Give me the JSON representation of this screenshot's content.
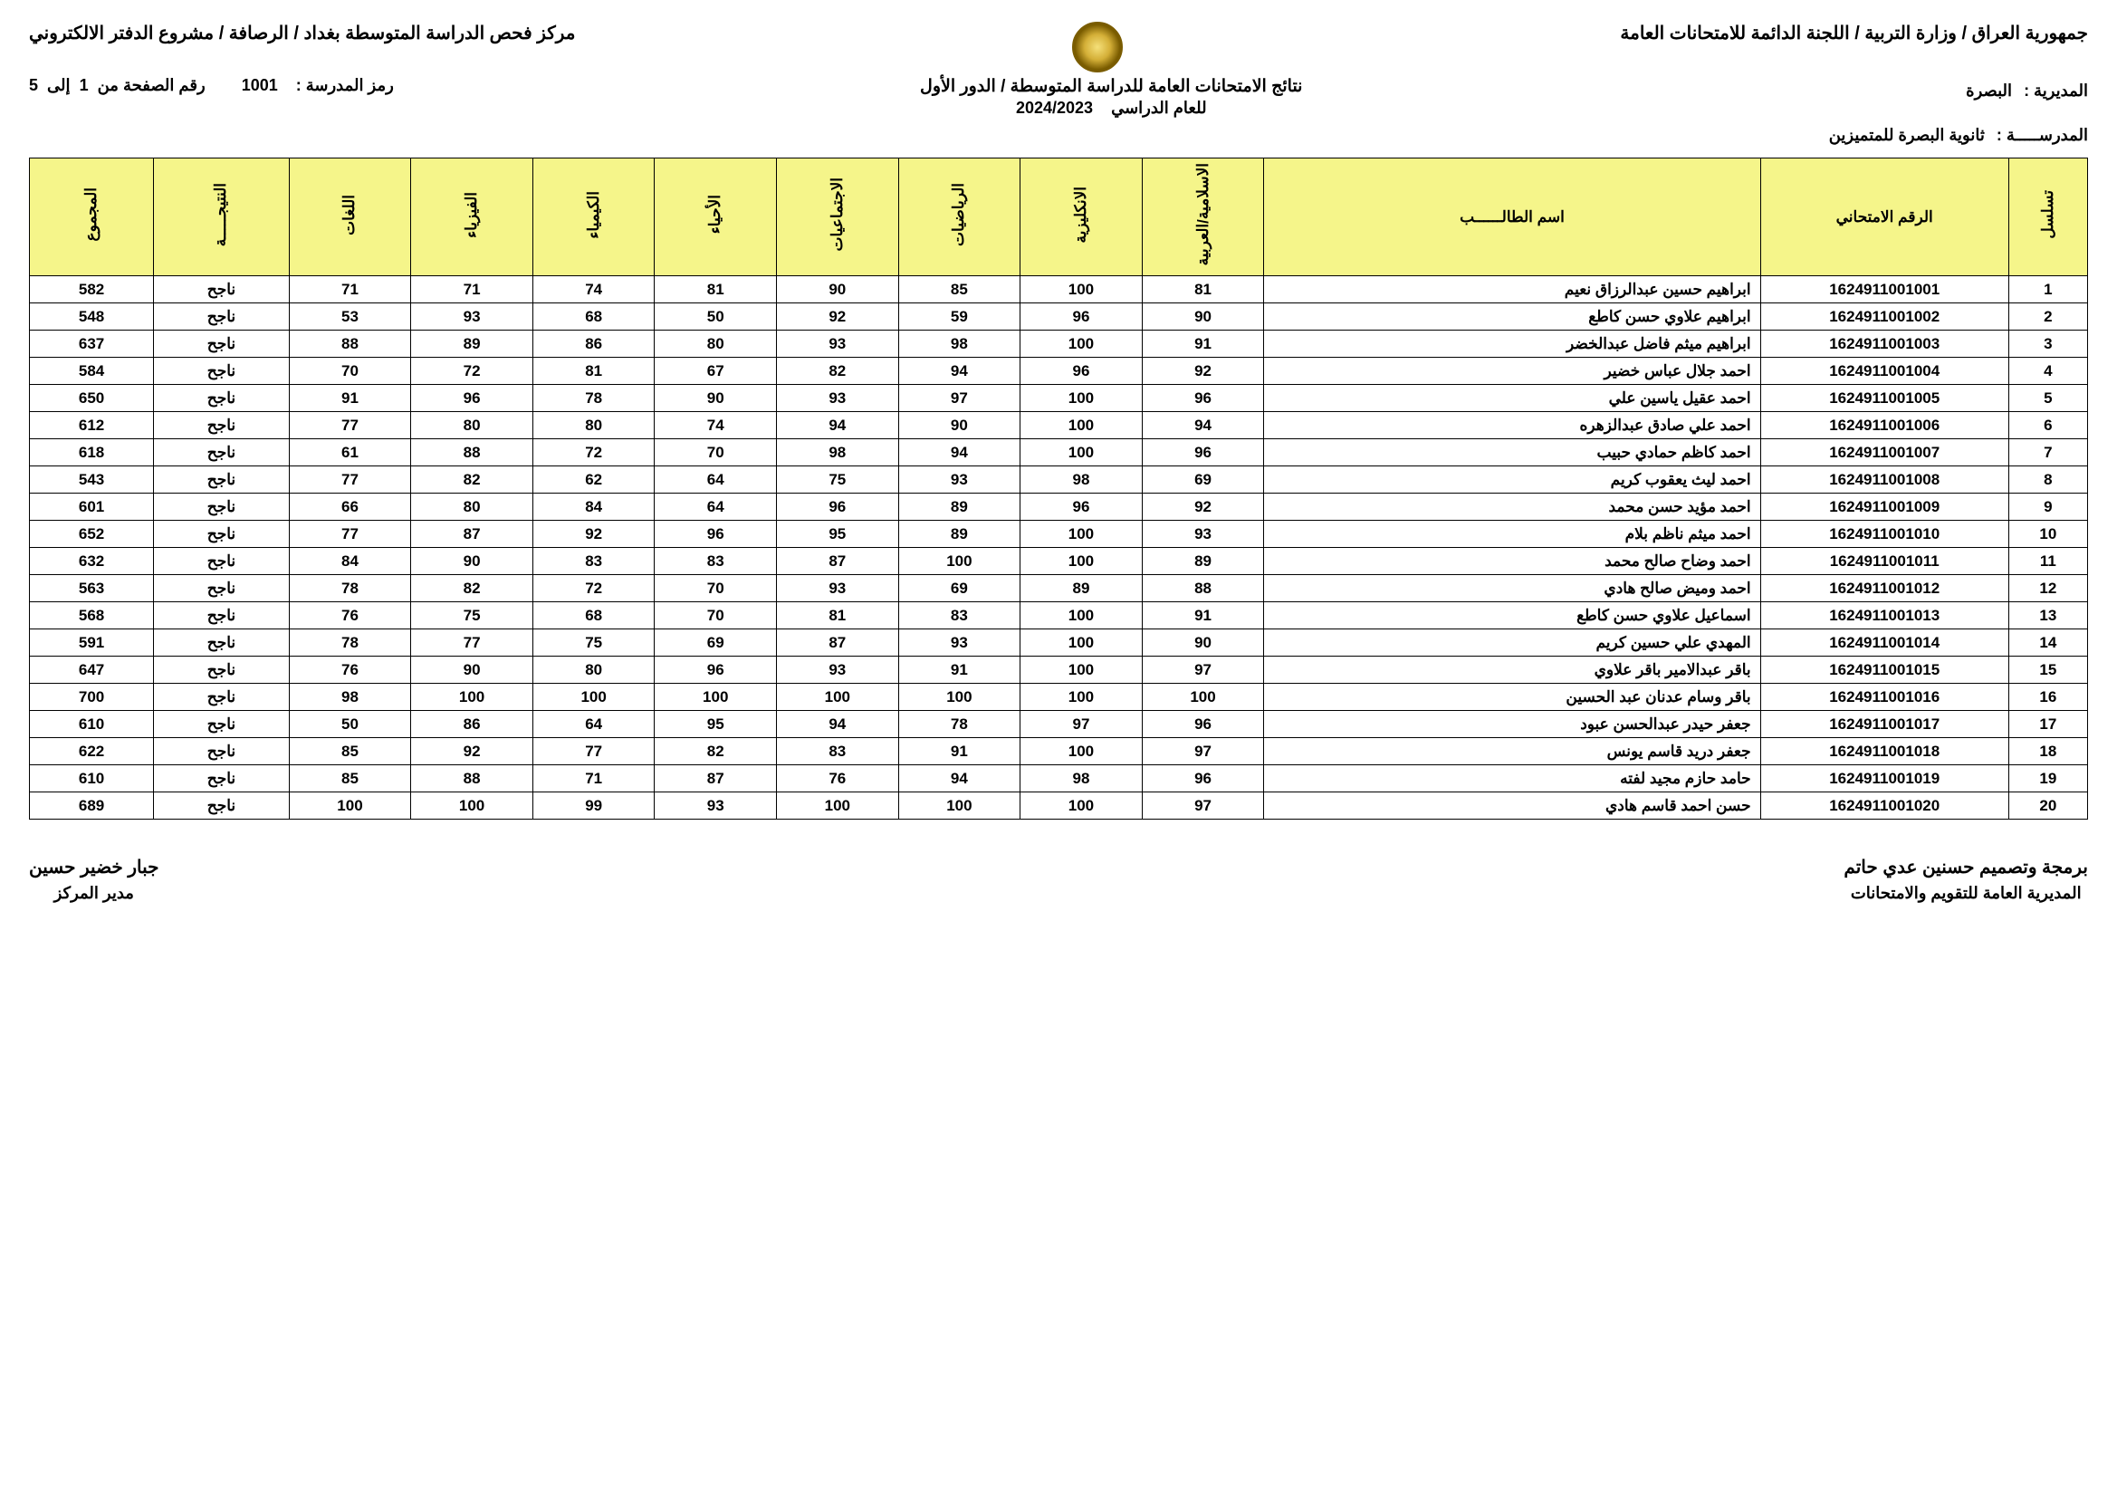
{
  "header": {
    "right_top": "جمهورية العراق / وزارة التربية / اللجنة الدائمة للامتحانات العامة",
    "left_top": "مركز فحص الدراسة المتوسطة بغداد / الرصافة / مشروع الدفتر الالكتروني",
    "school_code_label": "رمز المدرسة :",
    "school_code": "1001",
    "page_label": "رقم الصفحة من",
    "page_from": "1",
    "page_to_word": "إلى",
    "page_to": "5",
    "center_line1": "نتائج الامتحانات العامة للدراسة المتوسطة / الدور الأول",
    "center_line2_label": "للعام الدراسي",
    "center_line2_year": "2024/2023",
    "directorate_label": "المديرية :",
    "directorate_value": "البصرة",
    "school_label": "المدرســـــة :",
    "school_value": "ثانوية البصرة للمتميزين"
  },
  "columns": {
    "seq": "تسلسل",
    "exam_no": "الرقم الامتحاني",
    "name": "اسم الطالــــــب",
    "islamic": "الاسلامية/العربية",
    "english": "الانكليزية",
    "math": "الرياضيات",
    "social": "الاجتماعيات",
    "biology": "الأحياء",
    "chemistry": "الكيمياء",
    "physics": "الفيزياء",
    "lugat": "اللغات",
    "result": "النتيجـــــة",
    "total": "المجموع"
  },
  "rows": [
    {
      "seq": "1",
      "exam": "1624911001001",
      "name": "ابراهيم حسين عبدالرزاق نعيم",
      "s": [
        "81",
        "100",
        "85",
        "90",
        "81",
        "74",
        "71",
        "71"
      ],
      "res": "ناجح",
      "tot": "582"
    },
    {
      "seq": "2",
      "exam": "1624911001002",
      "name": "ابراهيم علاوي حسن كاطع",
      "s": [
        "90",
        "96",
        "59",
        "92",
        "50",
        "68",
        "93",
        "53"
      ],
      "res": "ناجح",
      "tot": "548"
    },
    {
      "seq": "3",
      "exam": "1624911001003",
      "name": "ابراهيم ميثم فاضل عبدالخضر",
      "s": [
        "91",
        "100",
        "98",
        "93",
        "80",
        "86",
        "89",
        "88"
      ],
      "res": "ناجح",
      "tot": "637"
    },
    {
      "seq": "4",
      "exam": "1624911001004",
      "name": "احمد جلال عباس خضير",
      "s": [
        "92",
        "96",
        "94",
        "82",
        "67",
        "81",
        "72",
        "70"
      ],
      "res": "ناجح",
      "tot": "584"
    },
    {
      "seq": "5",
      "exam": "1624911001005",
      "name": "احمد عقيل ياسين علي",
      "s": [
        "96",
        "100",
        "97",
        "93",
        "90",
        "78",
        "96",
        "91"
      ],
      "res": "ناجح",
      "tot": "650"
    },
    {
      "seq": "6",
      "exam": "1624911001006",
      "name": "احمد علي صادق عبدالزهره",
      "s": [
        "94",
        "100",
        "90",
        "94",
        "74",
        "80",
        "80",
        "77"
      ],
      "res": "ناجح",
      "tot": "612"
    },
    {
      "seq": "7",
      "exam": "1624911001007",
      "name": "احمد كاظم حمادي حبيب",
      "s": [
        "96",
        "100",
        "94",
        "98",
        "70",
        "72",
        "88",
        "61"
      ],
      "res": "ناجح",
      "tot": "618"
    },
    {
      "seq": "8",
      "exam": "1624911001008",
      "name": "احمد ليث يعقوب كريم",
      "s": [
        "69",
        "98",
        "93",
        "75",
        "64",
        "62",
        "82",
        "77"
      ],
      "res": "ناجح",
      "tot": "543"
    },
    {
      "seq": "9",
      "exam": "1624911001009",
      "name": "احمد مؤيد حسن محمد",
      "s": [
        "92",
        "96",
        "89",
        "96",
        "64",
        "84",
        "80",
        "66"
      ],
      "res": "ناجح",
      "tot": "601"
    },
    {
      "seq": "10",
      "exam": "1624911001010",
      "name": "احمد ميثم ناظم بلام",
      "s": [
        "93",
        "100",
        "89",
        "95",
        "96",
        "92",
        "87",
        "77"
      ],
      "res": "ناجح",
      "tot": "652"
    },
    {
      "seq": "11",
      "exam": "1624911001011",
      "name": "احمد وضاح صالح محمد",
      "s": [
        "89",
        "100",
        "100",
        "87",
        "83",
        "83",
        "90",
        "84"
      ],
      "res": "ناجح",
      "tot": "632"
    },
    {
      "seq": "12",
      "exam": "1624911001012",
      "name": "احمد وميض صالح هادي",
      "s": [
        "88",
        "89",
        "69",
        "93",
        "70",
        "72",
        "82",
        "78"
      ],
      "res": "ناجح",
      "tot": "563"
    },
    {
      "seq": "13",
      "exam": "1624911001013",
      "name": "اسماعيل علاوي حسن كاطع",
      "s": [
        "91",
        "100",
        "83",
        "81",
        "70",
        "68",
        "75",
        "76"
      ],
      "res": "ناجح",
      "tot": "568"
    },
    {
      "seq": "14",
      "exam": "1624911001014",
      "name": "المهدي علي حسين كريم",
      "s": [
        "90",
        "100",
        "93",
        "87",
        "69",
        "75",
        "77",
        "78"
      ],
      "res": "ناجح",
      "tot": "591"
    },
    {
      "seq": "15",
      "exam": "1624911001015",
      "name": "باقر عبدالامير باقر علاوي",
      "s": [
        "97",
        "100",
        "91",
        "93",
        "96",
        "80",
        "90",
        "76"
      ],
      "res": "ناجح",
      "tot": "647"
    },
    {
      "seq": "16",
      "exam": "1624911001016",
      "name": "باقر وسام عدنان عبد الحسين",
      "s": [
        "100",
        "100",
        "100",
        "100",
        "100",
        "100",
        "100",
        "98"
      ],
      "res": "ناجح",
      "tot": "700"
    },
    {
      "seq": "17",
      "exam": "1624911001017",
      "name": "جعفر حيدر عبدالحسن عبود",
      "s": [
        "96",
        "97",
        "78",
        "94",
        "95",
        "64",
        "86",
        "50"
      ],
      "res": "ناجح",
      "tot": "610"
    },
    {
      "seq": "18",
      "exam": "1624911001018",
      "name": "جعفر دريد قاسم يونس",
      "s": [
        "97",
        "100",
        "91",
        "83",
        "82",
        "77",
        "92",
        "85"
      ],
      "res": "ناجح",
      "tot": "622"
    },
    {
      "seq": "19",
      "exam": "1624911001019",
      "name": "حامد حازم مجيد لفته",
      "s": [
        "96",
        "98",
        "94",
        "76",
        "87",
        "71",
        "88",
        "85"
      ],
      "res": "ناجح",
      "tot": "610"
    },
    {
      "seq": "20",
      "exam": "1624911001020",
      "name": "حسن احمد قاسم هادي",
      "s": [
        "97",
        "100",
        "100",
        "100",
        "93",
        "99",
        "100",
        "100"
      ],
      "res": "ناجح",
      "tot": "689"
    }
  ],
  "footer": {
    "right_name": "برمجة وتصميم حسنين عدي حاتم",
    "right_title": "المديرية العامة للتقويم والامتحانات",
    "left_name": "جبار خضير حسين",
    "left_title": "مدير المركز"
  },
  "style": {
    "header_bg": "#f5f58a",
    "border": "#000000",
    "page_bg": "#ffffff"
  }
}
